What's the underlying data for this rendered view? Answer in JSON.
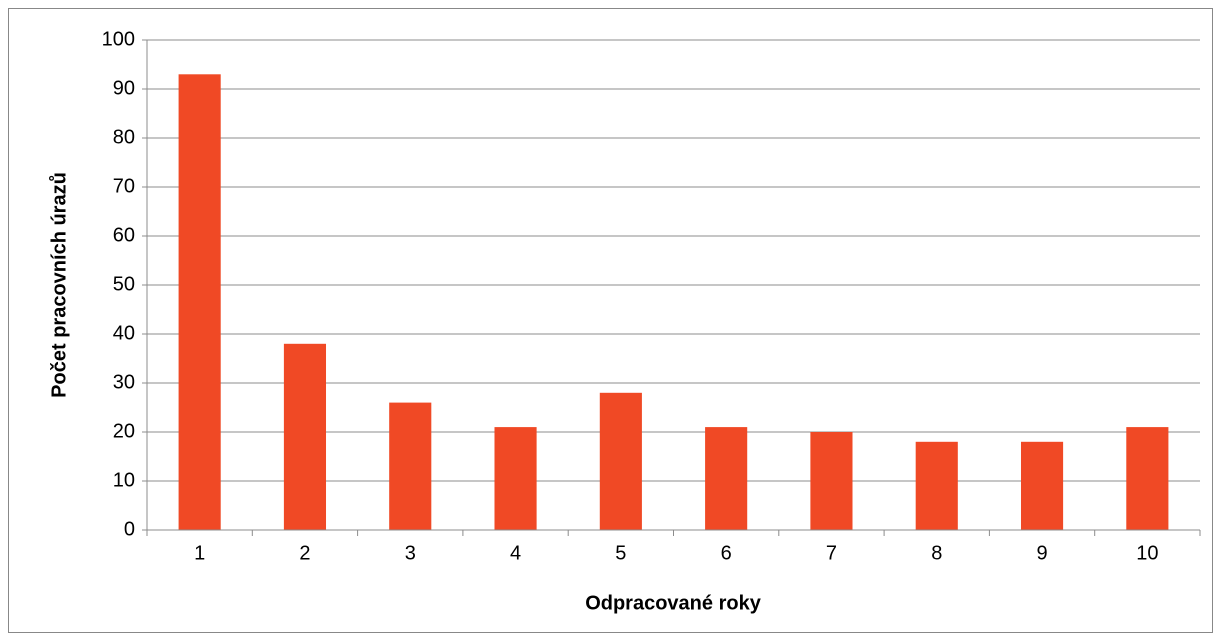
{
  "chart_data": {
    "type": "bar",
    "categories": [
      "1",
      "2",
      "3",
      "4",
      "5",
      "6",
      "7",
      "8",
      "9",
      "10"
    ],
    "values": [
      93,
      38,
      26,
      21,
      28,
      21,
      20,
      18,
      18,
      21
    ],
    "color": "#f04925",
    "ylim": [
      0,
      100
    ],
    "yticks": [
      0,
      10,
      20,
      30,
      40,
      50,
      60,
      70,
      80,
      90,
      100
    ],
    "grid": true,
    "x_label": "Odpracované roky",
    "y_label": "Počet pracovních úrazů"
  }
}
